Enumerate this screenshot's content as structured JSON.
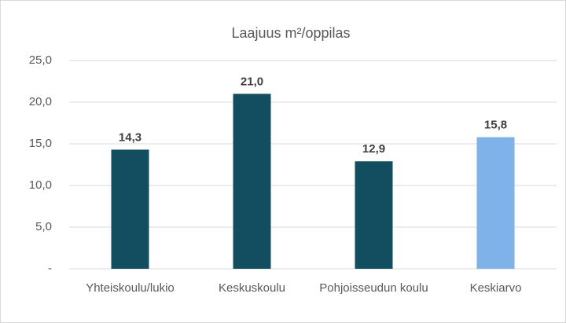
{
  "chart_data": {
    "type": "bar",
    "title": "Laajuus m²/oppilas",
    "categories": [
      "Yhteiskoulu/lukio",
      "Keskuskoulu",
      "Pohjoisseudun koulu",
      "Keskiarvo"
    ],
    "values": [
      14.3,
      21.0,
      12.9,
      15.8
    ],
    "value_labels": [
      "14,3",
      "21,0",
      "12,9",
      "15,8"
    ],
    "colors": [
      "#124e5f",
      "#124e5f",
      "#124e5f",
      "#7eb2e8"
    ],
    "ylim": [
      0,
      25
    ],
    "yticks": [
      {
        "value": 0,
        "label": "-"
      },
      {
        "value": 5,
        "label": "5,0"
      },
      {
        "value": 10,
        "label": "10,0"
      },
      {
        "value": 15,
        "label": "15,0"
      },
      {
        "value": 20,
        "label": "20,0"
      },
      {
        "value": 25,
        "label": "25,0"
      }
    ],
    "grid": true
  }
}
